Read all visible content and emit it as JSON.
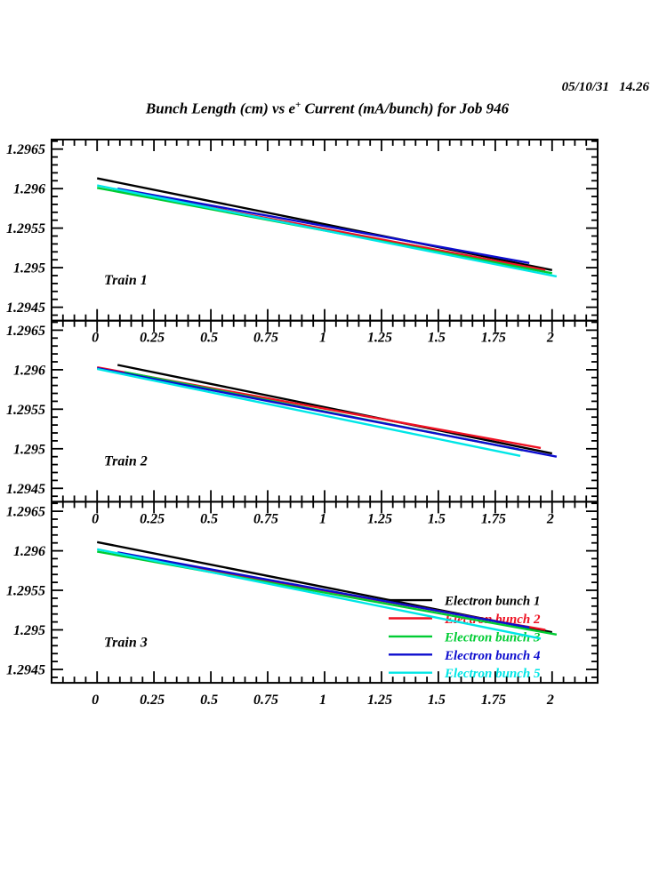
{
  "header": {
    "timestamp": "05/10/31   14.26",
    "title_prefix": "Bunch Length (cm) vs e",
    "title_sup": "+",
    "title_suffix": " Current (mA/bunch) for Job 946"
  },
  "chart_data": {
    "type": "line",
    "title": "Bunch Length (cm) vs e+ Current (mA/bunch) for Job 946",
    "xlabel": "e+ Current (mA/bunch)",
    "ylabel": "Bunch Length (cm)",
    "x_axis": {
      "range": [
        -0.2,
        2.2
      ],
      "major_ticks": [
        0,
        0.25,
        0.5,
        0.75,
        1,
        1.25,
        1.5,
        1.75,
        2
      ],
      "major_labels": [
        "0",
        "0.25",
        "0.5",
        "0.75",
        "1",
        "1.25",
        "1.5",
        "1.75",
        "2"
      ],
      "minor_step": 0.05
    },
    "y_axis": {
      "range": [
        1.29433,
        1.29662
      ],
      "major_ticks": [
        1.2945,
        1.295,
        1.2955,
        1.296,
        1.2965
      ],
      "major_labels": [
        "1.2945",
        "1.295",
        "1.2955",
        "1.296",
        "1.2965"
      ],
      "minor_step": 0.0001
    },
    "grid": false,
    "panels": [
      {
        "name": "Train 1",
        "series": [
          {
            "name": "Electron bunch 1",
            "color": "#000000",
            "points": [
              [
                0.0,
                1.29613
              ],
              [
                2.0,
                1.29497
              ]
            ]
          },
          {
            "name": "Electron bunch 2",
            "color": "#EE1122",
            "points": [
              [
                0.09,
                1.29598
              ],
              [
                1.97,
                1.29497
              ]
            ]
          },
          {
            "name": "Electron bunch 3",
            "color": "#00CC33",
            "points": [
              [
                0.0,
                1.29601
              ],
              [
                2.0,
                1.29493
              ]
            ]
          },
          {
            "name": "Electron bunch 4",
            "color": "#0D0DCE",
            "points": [
              [
                0.09,
                1.296
              ],
              [
                1.9,
                1.29506
              ]
            ]
          },
          {
            "name": "Electron bunch 5",
            "color": "#00E6E6",
            "points": [
              [
                0.0,
                1.29604
              ],
              [
                2.02,
                1.29489
              ]
            ]
          }
        ]
      },
      {
        "name": "Train 2",
        "series": [
          {
            "name": "Electron bunch 1",
            "color": "#000000",
            "points": [
              [
                0.09,
                1.29606
              ],
              [
                2.0,
                1.29494
              ]
            ]
          },
          {
            "name": "Electron bunch 2",
            "color": "#EE1122",
            "points": [
              [
                0.0,
                1.29603
              ],
              [
                1.95,
                1.29501
              ]
            ]
          },
          {
            "name": "Electron bunch 3",
            "color": "#00CC33",
            "points": [
              [
                0.12,
                1.29597
              ],
              [
                1.87,
                1.29498
              ]
            ]
          },
          {
            "name": "Electron bunch 4",
            "color": "#0D0DCE",
            "points": [
              [
                0.0,
                1.29602
              ],
              [
                2.02,
                1.2949
              ]
            ]
          },
          {
            "name": "Electron bunch 5",
            "color": "#00E6E6",
            "points": [
              [
                0.0,
                1.29601
              ],
              [
                1.86,
                1.29491
              ]
            ]
          }
        ]
      },
      {
        "name": "Train 3",
        "series": [
          {
            "name": "Electron bunch 1",
            "color": "#000000",
            "points": [
              [
                0.0,
                1.29611
              ],
              [
                2.0,
                1.29497
              ]
            ]
          },
          {
            "name": "Electron bunch 2",
            "color": "#EE1122",
            "points": [
              [
                0.09,
                1.29596
              ],
              [
                1.97,
                1.295
              ]
            ]
          },
          {
            "name": "Electron bunch 3",
            "color": "#00CC33",
            "points": [
              [
                0.0,
                1.29599
              ],
              [
                2.02,
                1.29494
              ]
            ]
          },
          {
            "name": "Electron bunch 4",
            "color": "#0D0DCE",
            "points": [
              [
                0.09,
                1.29598
              ],
              [
                1.9,
                1.29503
              ]
            ]
          },
          {
            "name": "Electron bunch 5",
            "color": "#00E6E6",
            "points": [
              [
                0.0,
                1.29602
              ],
              [
                1.95,
                1.29489
              ]
            ]
          }
        ]
      }
    ],
    "legend": {
      "position": "inside-panel-3",
      "entries": [
        {
          "label": "Electron bunch 1",
          "color": "#000000"
        },
        {
          "label": "Electron bunch 2",
          "color": "#EE1122"
        },
        {
          "label": "Electron bunch 3",
          "color": "#00CC33"
        },
        {
          "label": "Electron bunch 4",
          "color": "#0D0DCE"
        },
        {
          "label": "Electron bunch 5",
          "color": "#00E6E6"
        }
      ]
    }
  }
}
